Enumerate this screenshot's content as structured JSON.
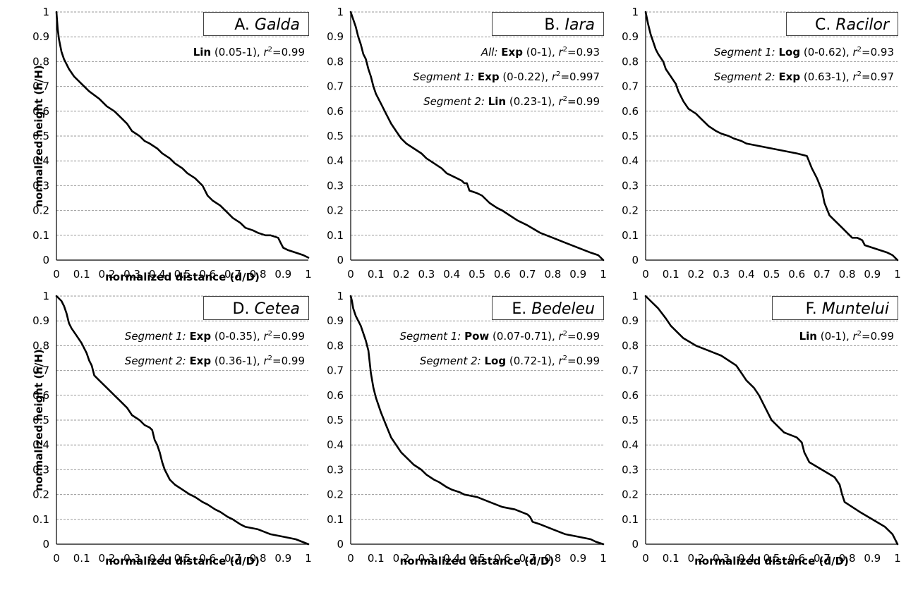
{
  "chart_data": [
    {
      "type": "line",
      "panel_letter": "A.",
      "panel_name": "Galda",
      "xlabel": "normalized distance (d/D)",
      "ylabel": "normalized height (h/H)",
      "xlim": [
        0,
        1
      ],
      "ylim": [
        0,
        1
      ],
      "xticks": [
        "0",
        "0.1",
        "0.2",
        "0.3",
        "0.4",
        "0.5",
        "0.6",
        "0.7",
        "0.8",
        "0.9",
        "1"
      ],
      "yticks": [
        "0",
        "0.1",
        "0.2",
        "0.3",
        "0.4",
        "0.5",
        "0.6",
        "0.7",
        "0.8",
        "0.9",
        "1"
      ],
      "grid": true,
      "annotations": [
        [
          {
            "t": "Lin",
            "b": true
          },
          {
            "t": " (0.05-1), "
          },
          {
            "t": "r",
            "i": true
          },
          {
            "t": "2",
            "sup": true
          },
          {
            "t": "=0.99"
          }
        ]
      ],
      "x": [
        0,
        0.005,
        0.01,
        0.02,
        0.03,
        0.05,
        0.07,
        0.1,
        0.13,
        0.17,
        0.2,
        0.23,
        0.25,
        0.28,
        0.3,
        0.33,
        0.35,
        0.37,
        0.4,
        0.42,
        0.45,
        0.47,
        0.5,
        0.52,
        0.55,
        0.58,
        0.6,
        0.62,
        0.65,
        0.68,
        0.7,
        0.73,
        0.75,
        0.78,
        0.8,
        0.83,
        0.85,
        0.88,
        0.89,
        0.9,
        0.92,
        0.95,
        0.98,
        1
      ],
      "y": [
        1,
        0.93,
        0.89,
        0.84,
        0.81,
        0.77,
        0.74,
        0.71,
        0.68,
        0.65,
        0.62,
        0.6,
        0.58,
        0.55,
        0.52,
        0.5,
        0.48,
        0.47,
        0.45,
        0.43,
        0.41,
        0.39,
        0.37,
        0.35,
        0.33,
        0.3,
        0.26,
        0.24,
        0.22,
        0.19,
        0.17,
        0.15,
        0.13,
        0.12,
        0.11,
        0.1,
        0.1,
        0.09,
        0.07,
        0.05,
        0.04,
        0.03,
        0.02,
        0.01
      ]
    },
    {
      "type": "line",
      "panel_letter": "B.",
      "panel_name": "Iara",
      "xlabel": "",
      "ylabel": "",
      "xlim": [
        0,
        1
      ],
      "ylim": [
        0,
        1
      ],
      "xticks": [
        "0",
        "0.1",
        "0.2",
        "0.3",
        "0.4",
        "0.5",
        "0.6",
        "0.7",
        "0.8",
        "0.9",
        "1"
      ],
      "yticks": [
        "0",
        "0.1",
        "0.2",
        "0.3",
        "0.4",
        "0.5",
        "0.6",
        "0.7",
        "0.8",
        "0.9",
        "1"
      ],
      "grid": true,
      "annotations": [
        [
          {
            "t": "All: ",
            "i": true
          },
          {
            "t": "Exp",
            "b": true
          },
          {
            "t": " (0-1), "
          },
          {
            "t": "r",
            "i": true
          },
          {
            "t": "2",
            "sup": true
          },
          {
            "t": "=0.93"
          }
        ],
        [
          {
            "t": "Segment 1: ",
            "i": true
          },
          {
            "t": "Exp",
            "b": true
          },
          {
            "t": " (0-0.22), "
          },
          {
            "t": "r",
            "i": true
          },
          {
            "t": "2",
            "sup": true
          },
          {
            "t": "=0.997"
          }
        ],
        [
          {
            "t": "Segment 2: ",
            "i": true
          },
          {
            "t": "Lin",
            "b": true
          },
          {
            "t": " (0.23-1), "
          },
          {
            "t": "r",
            "i": true
          },
          {
            "t": "2",
            "sup": true
          },
          {
            "t": "=0.99"
          }
        ]
      ],
      "x": [
        0,
        0.01,
        0.02,
        0.03,
        0.04,
        0.05,
        0.06,
        0.07,
        0.08,
        0.09,
        0.1,
        0.12,
        0.14,
        0.16,
        0.18,
        0.2,
        0.22,
        0.25,
        0.28,
        0.3,
        0.33,
        0.36,
        0.38,
        0.4,
        0.42,
        0.44,
        0.45,
        0.46,
        0.47,
        0.5,
        0.52,
        0.55,
        0.58,
        0.6,
        0.63,
        0.66,
        0.7,
        0.75,
        0.8,
        0.85,
        0.9,
        0.95,
        0.98,
        1
      ],
      "y": [
        1,
        0.97,
        0.94,
        0.9,
        0.87,
        0.83,
        0.81,
        0.77,
        0.74,
        0.7,
        0.67,
        0.63,
        0.59,
        0.55,
        0.52,
        0.49,
        0.47,
        0.45,
        0.43,
        0.41,
        0.39,
        0.37,
        0.35,
        0.34,
        0.33,
        0.32,
        0.31,
        0.31,
        0.28,
        0.27,
        0.26,
        0.23,
        0.21,
        0.2,
        0.18,
        0.16,
        0.14,
        0.11,
        0.09,
        0.07,
        0.05,
        0.03,
        0.02,
        0
      ]
    },
    {
      "type": "line",
      "panel_letter": "C.",
      "panel_name": "Racilor",
      "xlabel": "",
      "ylabel": "",
      "xlim": [
        0,
        1
      ],
      "ylim": [
        0,
        1
      ],
      "xticks": [
        "0",
        "0.1",
        "0.2",
        "0.3",
        "0.4",
        "0.5",
        "0.6",
        "0.7",
        "0.8",
        "0.9",
        "1"
      ],
      "yticks": [
        "0",
        "0.1",
        "0.2",
        "0.3",
        "0.4",
        "0.5",
        "0.6",
        "0.7",
        "0.8",
        "0.9",
        "1"
      ],
      "grid": true,
      "annotations": [
        [
          {
            "t": "Segment 1: ",
            "i": true
          },
          {
            "t": "Log",
            "b": true
          },
          {
            "t": " (0-0.62), "
          },
          {
            "t": "r",
            "i": true
          },
          {
            "t": "2",
            "sup": true
          },
          {
            "t": "=0.93"
          }
        ],
        [
          {
            "t": "Segment 2: ",
            "i": true
          },
          {
            "t": "Exp",
            "b": true
          },
          {
            "t": " (0.63-1), "
          },
          {
            "t": "r",
            "i": true
          },
          {
            "t": "2",
            "sup": true
          },
          {
            "t": "=0.97"
          }
        ]
      ],
      "x": [
        0,
        0.01,
        0.02,
        0.03,
        0.04,
        0.05,
        0.07,
        0.08,
        0.1,
        0.12,
        0.13,
        0.15,
        0.17,
        0.2,
        0.22,
        0.25,
        0.28,
        0.3,
        0.33,
        0.35,
        0.38,
        0.4,
        0.45,
        0.5,
        0.55,
        0.6,
        0.64,
        0.66,
        0.68,
        0.7,
        0.71,
        0.73,
        0.75,
        0.78,
        0.8,
        0.82,
        0.84,
        0.86,
        0.87,
        0.9,
        0.93,
        0.96,
        0.98,
        1
      ],
      "y": [
        1,
        0.95,
        0.91,
        0.88,
        0.85,
        0.83,
        0.8,
        0.77,
        0.74,
        0.71,
        0.68,
        0.64,
        0.61,
        0.59,
        0.57,
        0.54,
        0.52,
        0.51,
        0.5,
        0.49,
        0.48,
        0.47,
        0.46,
        0.45,
        0.44,
        0.43,
        0.42,
        0.37,
        0.33,
        0.28,
        0.23,
        0.18,
        0.16,
        0.13,
        0.11,
        0.09,
        0.09,
        0.08,
        0.06,
        0.05,
        0.04,
        0.03,
        0.02,
        0
      ]
    },
    {
      "type": "line",
      "panel_letter": "D.",
      "panel_name": "Cetea",
      "xlabel": "normalized distance (d/D)",
      "ylabel": "normalized height (h/H)",
      "xlim": [
        0,
        1
      ],
      "ylim": [
        0,
        1
      ],
      "xticks": [
        "0",
        "0.1",
        "0.2",
        "0.3",
        "0.4",
        "0.5",
        "0.6",
        "0.7",
        "0.8",
        "0.9",
        "1"
      ],
      "yticks": [
        "0",
        "0.1",
        "0.2",
        "0.3",
        "0.4",
        "0.5",
        "0.6",
        "0.7",
        "0.8",
        "0.9",
        "1"
      ],
      "grid": true,
      "annotations": [
        [
          {
            "t": "Segment 1: ",
            "i": true
          },
          {
            "t": "Exp",
            "b": true
          },
          {
            "t": " (0-0.35), "
          },
          {
            "t": "r",
            "i": true
          },
          {
            "t": "2",
            "sup": true
          },
          {
            "t": "=0.99"
          }
        ],
        [
          {
            "t": "Segment 2: ",
            "i": true
          },
          {
            "t": "Exp",
            "b": true
          },
          {
            "t": " (0.36-1), "
          },
          {
            "t": "r",
            "i": true
          },
          {
            "t": "2",
            "sup": true
          },
          {
            "t": "=0.99"
          }
        ]
      ],
      "x": [
        0,
        0.01,
        0.02,
        0.03,
        0.04,
        0.05,
        0.06,
        0.08,
        0.1,
        0.12,
        0.13,
        0.14,
        0.15,
        0.17,
        0.2,
        0.23,
        0.25,
        0.28,
        0.3,
        0.33,
        0.35,
        0.37,
        0.38,
        0.39,
        0.4,
        0.41,
        0.42,
        0.43,
        0.45,
        0.47,
        0.5,
        0.53,
        0.55,
        0.58,
        0.6,
        0.63,
        0.65,
        0.68,
        0.7,
        0.73,
        0.75,
        0.8,
        0.85,
        0.9,
        0.95,
        1
      ],
      "y": [
        1,
        0.99,
        0.98,
        0.96,
        0.93,
        0.89,
        0.87,
        0.84,
        0.81,
        0.77,
        0.74,
        0.72,
        0.68,
        0.66,
        0.63,
        0.6,
        0.58,
        0.55,
        0.52,
        0.5,
        0.48,
        0.47,
        0.46,
        0.42,
        0.4,
        0.37,
        0.33,
        0.3,
        0.26,
        0.24,
        0.22,
        0.2,
        0.19,
        0.17,
        0.16,
        0.14,
        0.13,
        0.11,
        0.1,
        0.08,
        0.07,
        0.06,
        0.04,
        0.03,
        0.02,
        0
      ]
    },
    {
      "type": "line",
      "panel_letter": "E.",
      "panel_name": "Bedeleu",
      "xlabel": "normalized distance (d/D)",
      "ylabel": "",
      "xlim": [
        0,
        1
      ],
      "ylim": [
        0,
        1
      ],
      "xticks": [
        "0",
        "0.1",
        "0.2",
        "0.3",
        "0.4",
        "0.5",
        "0.6",
        "0.7",
        "0.8",
        "0.9",
        "1"
      ],
      "yticks": [
        "0",
        "0.1",
        "0.2",
        "0.3",
        "0.4",
        "0.5",
        "0.6",
        "0.7",
        "0.8",
        "0.9",
        "1"
      ],
      "grid": true,
      "annotations": [
        [
          {
            "t": "Segment 1: ",
            "i": true
          },
          {
            "t": "Pow",
            "b": true
          },
          {
            "t": " (0.07-0.71), "
          },
          {
            "t": "r",
            "i": true
          },
          {
            "t": "2",
            "sup": true
          },
          {
            "t": "=0.99"
          }
        ],
        [
          {
            "t": "Segment 2: ",
            "i": true
          },
          {
            "t": "Log",
            "b": true
          },
          {
            "t": " (0.72-1), "
          },
          {
            "t": "r",
            "i": true
          },
          {
            "t": "2",
            "sup": true
          },
          {
            "t": "=0.99"
          }
        ]
      ],
      "x": [
        0,
        0.005,
        0.01,
        0.02,
        0.03,
        0.04,
        0.05,
        0.06,
        0.07,
        0.08,
        0.09,
        0.1,
        0.12,
        0.14,
        0.16,
        0.18,
        0.2,
        0.23,
        0.25,
        0.28,
        0.3,
        0.33,
        0.35,
        0.38,
        0.4,
        0.43,
        0.45,
        0.5,
        0.55,
        0.6,
        0.65,
        0.7,
        0.71,
        0.72,
        0.75,
        0.8,
        0.85,
        0.9,
        0.95,
        0.97,
        1
      ],
      "y": [
        1,
        0.98,
        0.95,
        0.92,
        0.9,
        0.88,
        0.85,
        0.82,
        0.78,
        0.69,
        0.63,
        0.59,
        0.53,
        0.48,
        0.43,
        0.4,
        0.37,
        0.34,
        0.32,
        0.3,
        0.28,
        0.26,
        0.25,
        0.23,
        0.22,
        0.21,
        0.2,
        0.19,
        0.17,
        0.15,
        0.14,
        0.12,
        0.11,
        0.09,
        0.08,
        0.06,
        0.04,
        0.03,
        0.02,
        0.01,
        0
      ]
    },
    {
      "type": "line",
      "panel_letter": "F.",
      "panel_name": "Muntelui",
      "xlabel": "normalized distance (d/D)",
      "ylabel": "",
      "xlim": [
        0,
        1
      ],
      "ylim": [
        0,
        1
      ],
      "xticks": [
        "0",
        "0.1",
        "0.2",
        "0.3",
        "0.4",
        "0.5",
        "0.6",
        "0.7",
        "0.8",
        "0.9",
        "1"
      ],
      "yticks": [
        "0",
        "0.1",
        "0.2",
        "0.3",
        "0.4",
        "0.5",
        "0.6",
        "0.7",
        "0.8",
        "0.9",
        "1"
      ],
      "grid": true,
      "annotations": [
        [
          {
            "t": "Lin",
            "b": true
          },
          {
            "t": " (0-1), "
          },
          {
            "t": "r",
            "i": true
          },
          {
            "t": "2",
            "sup": true
          },
          {
            "t": "=0.99"
          }
        ]
      ],
      "x": [
        0,
        0.02,
        0.05,
        0.08,
        0.1,
        0.13,
        0.15,
        0.2,
        0.25,
        0.3,
        0.33,
        0.36,
        0.38,
        0.4,
        0.43,
        0.45,
        0.47,
        0.5,
        0.53,
        0.55,
        0.6,
        0.62,
        0.63,
        0.64,
        0.65,
        0.7,
        0.75,
        0.77,
        0.78,
        0.79,
        0.82,
        0.85,
        0.9,
        0.95,
        0.98,
        1
      ],
      "y": [
        1,
        0.98,
        0.95,
        0.91,
        0.88,
        0.85,
        0.83,
        0.8,
        0.78,
        0.76,
        0.74,
        0.72,
        0.69,
        0.66,
        0.63,
        0.6,
        0.56,
        0.5,
        0.47,
        0.45,
        0.43,
        0.41,
        0.37,
        0.35,
        0.33,
        0.3,
        0.27,
        0.24,
        0.2,
        0.17,
        0.15,
        0.13,
        0.1,
        0.07,
        0.04,
        0
      ]
    }
  ]
}
